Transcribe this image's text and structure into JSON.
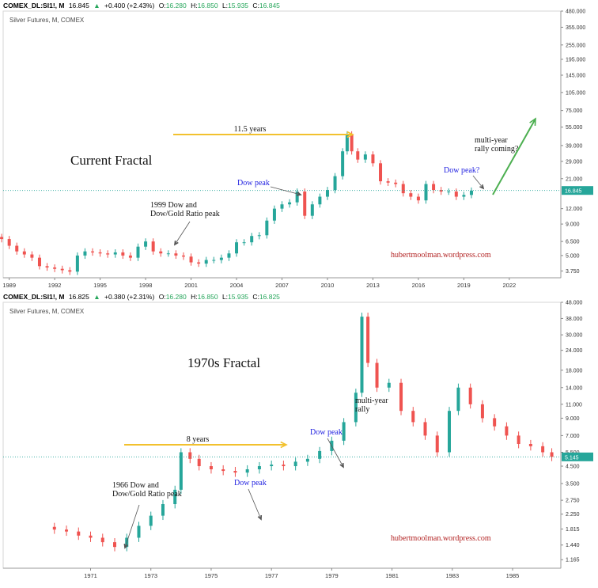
{
  "header_top": {
    "symbol": "COMEX_DL:SI1!, M",
    "price": "16.845",
    "change_arrow": "▲",
    "change": "+0.400 (+2.43%)",
    "o_label": "O:",
    "o": "16.280",
    "h_label": "H:",
    "h": "16.850",
    "l_label": "L:",
    "l": "15.935",
    "c_label": "C:",
    "c": "16.845"
  },
  "header_bottom": {
    "symbol": "COMEX_DL:SI1!, M",
    "price": "16.825",
    "change_arrow": "▲",
    "change": "+0.380 (+2.31%)",
    "o_label": "O:",
    "o": "16.280",
    "h_label": "H:",
    "h": "16.850",
    "l_label": "L:",
    "l": "15.935",
    "c_label": "C:",
    "c": "16.825"
  },
  "colors": {
    "up": "#26a69a",
    "down": "#ef5350",
    "arrow_yellow": "#f2c12e",
    "arrow_green": "#4caf50",
    "price_tag": "#26a69a",
    "wordpress": "#b22222",
    "blue_annot": "#1f1fe0"
  },
  "chart_data": [
    {
      "type": "candlestick",
      "subtitle": "Silver Futures, M, COMEX",
      "title": "Current Fractal",
      "y_scale": "log",
      "y_ticks": [
        "480.000",
        "355.000",
        "255.000",
        "195.000",
        "145.000",
        "105.000",
        "75.000",
        "55.000",
        "39.000",
        "29.000",
        "21.000",
        "16.845",
        "12.000",
        "9.000",
        "6.500",
        "5.000",
        "3.750"
      ],
      "x_ticks": [
        "1989",
        "1992",
        "1995",
        "1998",
        "2001",
        "2004",
        "2007",
        "2010",
        "2013",
        "2016",
        "2019",
        "2022"
      ],
      "last_price": "16.845",
      "x": [
        1988.5,
        1989.0,
        1989.5,
        1990.0,
        1990.5,
        1991.0,
        1991.5,
        1992.0,
        1992.5,
        1993.0,
        1993.5,
        1994.0,
        1994.5,
        1995.0,
        1995.5,
        1996.0,
        1996.5,
        1997.0,
        1997.5,
        1998.0,
        1998.5,
        1999.0,
        1999.5,
        2000.0,
        2000.5,
        2001.0,
        2001.5,
        2002.0,
        2002.5,
        2003.0,
        2003.5,
        2004.0,
        2004.5,
        2005.0,
        2005.5,
        2006.0,
        2006.5,
        2007.0,
        2007.5,
        2008.0,
        2008.5,
        2009.0,
        2009.5,
        2010.0,
        2010.5,
        2011.0,
        2011.3,
        2011.6,
        2012.0,
        2012.5,
        2013.0,
        2013.5,
        2014.0,
        2014.5,
        2015.0,
        2015.5,
        2016.0,
        2016.5,
        2017.0,
        2017.5,
        2018.0,
        2018.5,
        2019.0,
        2019.5
      ],
      "close": [
        6.8,
        6.0,
        5.4,
        5.1,
        4.8,
        4.1,
        4.0,
        3.9,
        3.8,
        3.7,
        5.0,
        5.4,
        5.3,
        5.2,
        5.1,
        5.3,
        5.0,
        4.8,
        5.9,
        6.5,
        5.4,
        5.2,
        5.2,
        5.0,
        4.9,
        4.4,
        4.3,
        4.6,
        4.6,
        4.8,
        5.2,
        6.4,
        6.4,
        7.2,
        7.3,
        9.6,
        12.0,
        13.0,
        13.5,
        16.5,
        10.5,
        13.0,
        15.0,
        17.0,
        22.0,
        35.0,
        48.0,
        35.0,
        30.0,
        33.0,
        28.0,
        20.0,
        19.5,
        19.0,
        16.0,
        15.0,
        14.0,
        19.0,
        17.0,
        16.5,
        16.5,
        15.0,
        15.5,
        16.8
      ],
      "annotations": {
        "years_span": "11.5 years",
        "dow_peak": "Dow peak",
        "dow_peak_q": "Dow peak?",
        "dow_gold_1999": "1999 Dow and\nDow/Gold Ratio peak",
        "rally": "multi-year\nrally coming?",
        "watermark": "hubertmoolman.wordpress.com"
      }
    },
    {
      "type": "candlestick",
      "subtitle": "Silver Futures, M, COMEX",
      "title": "1970s Fractal",
      "y_scale": "log",
      "y_ticks": [
        "48.000",
        "38.000",
        "30.000",
        "24.000",
        "18.000",
        "14.000",
        "11.000",
        "9.000",
        "7.000",
        "5.500",
        "5.145",
        "4.500",
        "3.500",
        "2.750",
        "2.250",
        "1.815",
        "1.440",
        "1.165"
      ],
      "x_ticks": [
        "1971",
        "1973",
        "1975",
        "1977",
        "1979",
        "1981",
        "1983",
        "1985"
      ],
      "last_price": "5.145",
      "x": [
        1969.8,
        1970.2,
        1970.6,
        1971.0,
        1971.4,
        1971.8,
        1972.2,
        1972.6,
        1973.0,
        1973.4,
        1973.8,
        1974.0,
        1974.3,
        1974.6,
        1975.0,
        1975.4,
        1975.8,
        1976.2,
        1976.6,
        1977.0,
        1977.4,
        1977.8,
        1978.2,
        1978.6,
        1979.0,
        1979.4,
        1979.8,
        1980.0,
        1980.2,
        1980.5,
        1980.9,
        1981.3,
        1981.7,
        1982.1,
        1982.5,
        1982.9,
        1983.2,
        1983.6,
        1984.0,
        1984.4,
        1984.8,
        1985.2,
        1985.6,
        1986.0,
        1986.3
      ],
      "close": [
        1.8,
        1.75,
        1.65,
        1.6,
        1.5,
        1.4,
        1.6,
        1.9,
        2.2,
        2.6,
        3.2,
        5.5,
        5.0,
        4.5,
        4.3,
        4.2,
        4.1,
        4.3,
        4.5,
        4.6,
        4.5,
        4.8,
        5.0,
        5.6,
        6.5,
        8.5,
        13.0,
        39.0,
        20.0,
        14.0,
        15.0,
        10.0,
        8.5,
        7.0,
        5.5,
        10.0,
        14.0,
        11.0,
        9.0,
        8.0,
        7.0,
        6.2,
        6.0,
        5.5,
        5.145
      ],
      "annotations": {
        "years_span": "8 years",
        "dow_peak_1": "Dow peak",
        "dow_peak_2": "Dow peak",
        "dow_gold_1966": "1966 Dow and\nDow/Gold Ratio peak",
        "rally": "multi-year\nrally",
        "watermark": "hubertmoolman.wordpress.com"
      }
    }
  ]
}
